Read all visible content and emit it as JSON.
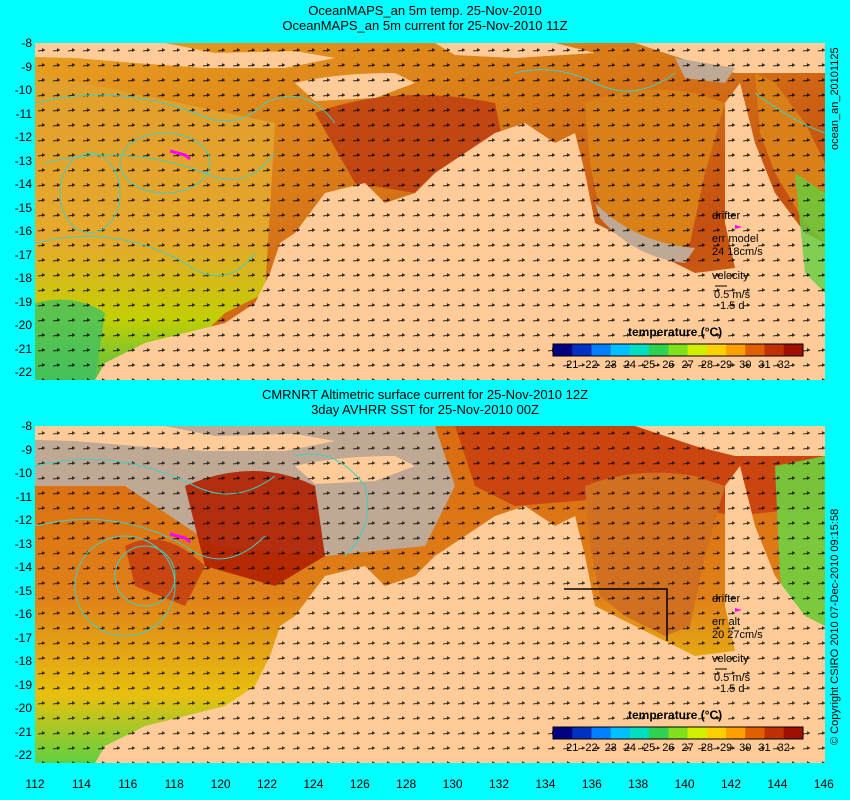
{
  "top_panel": {
    "title_line1": "OceanMAPS_an 5m temp. 25-Nov-2010",
    "title_line2": "OceanMAPS_an 5m current for 25-Nov-2010 11Z",
    "side_label": "ocean_an_20101125",
    "drifter_label": "drifter",
    "err_label": "err model",
    "err_value": "24 18cm/s",
    "velocity_label": "velocity",
    "velocity_scale": "0.5 m/s",
    "velocity_time": "1.5 d",
    "colorbar_title": "temperature (°C)"
  },
  "bottom_panel": {
    "title_line1": "CMRNRT Altimetric surface current for 25-Nov-2010 12Z",
    "title_line2": "3day AVHRR SST for 25-Nov-2010 00Z",
    "side_label": "© Copyright CSIRO 2010   07-Dec-2010 09:15:58",
    "drifter_label": "drifter",
    "err_label": "err alt",
    "err_value": "20 27cm/s",
    "velocity_label": "velocity",
    "velocity_scale": "0.5 m/s",
    "velocity_time": "1.5 d",
    "colorbar_title": "temperature (°C)"
  },
  "lat_labels": [
    "-8",
    "-9",
    "-10",
    "-11",
    "-12",
    "-13",
    "-14",
    "-15",
    "-16",
    "-17",
    "-18",
    "-19",
    "-20",
    "-21",
    "-22"
  ],
  "lon_labels": [
    "112",
    "114",
    "116",
    "118",
    "120",
    "122",
    "124",
    "126",
    "128",
    "130",
    "132",
    "134",
    "136",
    "138",
    "140",
    "142",
    "144",
    "146"
  ],
  "colorbar_ticks": [
    "21",
    "22",
    "23",
    "24",
    "25",
    "26",
    "27",
    "28",
    "29",
    "30",
    "31",
    "32"
  ],
  "colorbar_colors": [
    "#000080",
    "#0030c0",
    "#0080ff",
    "#00c0ff",
    "#00e0c0",
    "#30d050",
    "#80e020",
    "#d0f000",
    "#ffd000",
    "#ffa000",
    "#e06000",
    "#c03000",
    "#a01000"
  ],
  "colors": {
    "background": "#00ffff",
    "land": "#ffcc99",
    "nodata": "#bfa894",
    "ocean_warm": "#d96a10",
    "ocean_hot": "#b02000",
    "ocean_mid": "#e89020",
    "ocean_cool": "#e8d000",
    "ocean_green": "#60d040",
    "contour": "#40d0c0",
    "drifter": "#ff00ff"
  }
}
